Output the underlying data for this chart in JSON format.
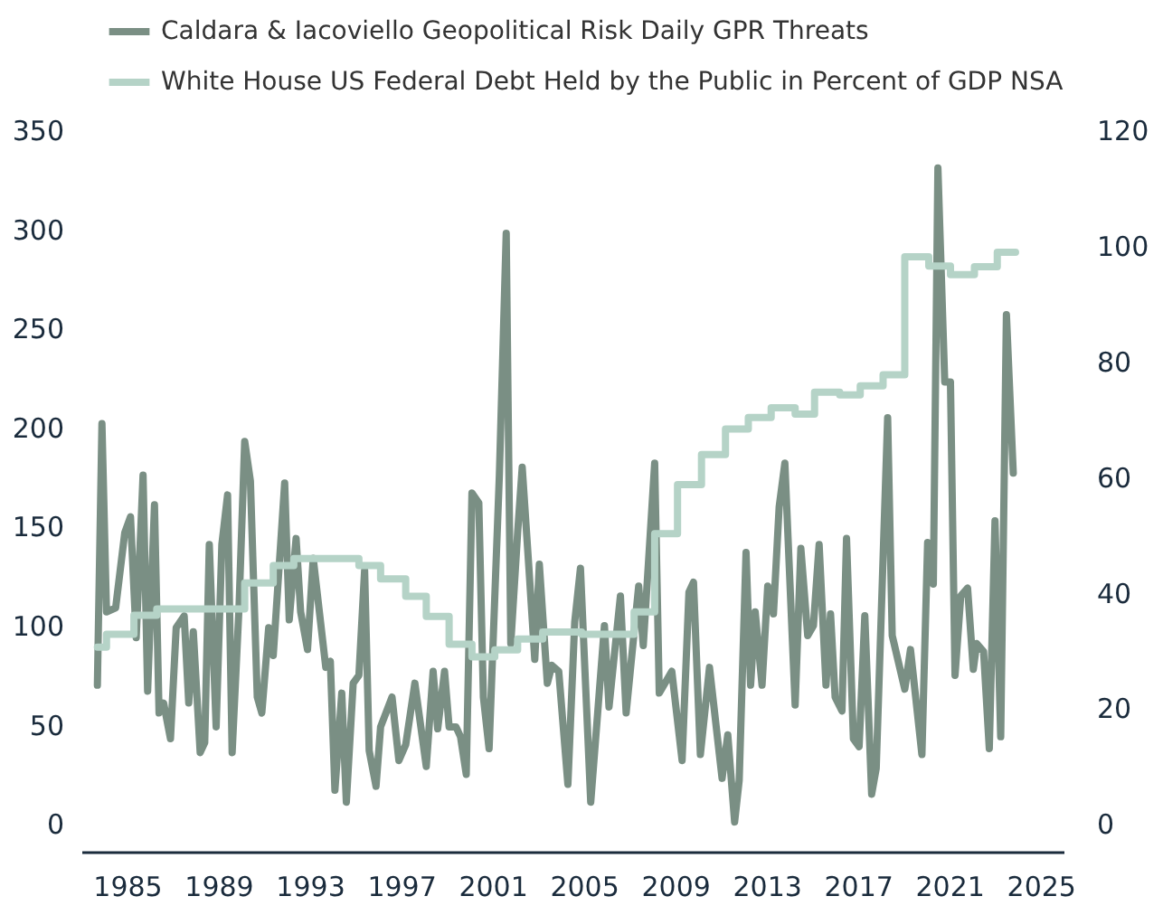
{
  "chart_data": {
    "type": "line",
    "legend": "top right",
    "grid": false,
    "xlim": [
      1983,
      2026
    ],
    "xticks": [
      1985,
      1989,
      1993,
      1997,
      2001,
      2005,
      2009,
      2013,
      2017,
      2021,
      2025
    ],
    "ylim": [
      -14,
      350
    ],
    "yticks": [
      0,
      50,
      100,
      150,
      200,
      250,
      300,
      350
    ],
    "y2lim": [
      -4.8,
      120
    ],
    "y2ticks": [
      0,
      20,
      40,
      60,
      80,
      100,
      120
    ],
    "series": [
      {
        "name": "Caldara & Iacoviello Geopolitical Risk Daily GPR Threats",
        "color": "#7a8f84",
        "x": [
          1983.7,
          1983.9,
          1984.1,
          1984.5,
          1984.9,
          1985.15,
          1985.4,
          1985.7,
          1985.9,
          1986.2,
          1986.4,
          1986.6,
          1986.9,
          1987.15,
          1987.5,
          1987.7,
          1987.9,
          1988.2,
          1988.4,
          1988.6,
          1988.9,
          1989.15,
          1989.4,
          1989.6,
          1989.9,
          1990.15,
          1990.4,
          1990.7,
          1990.9,
          1991.2,
          1991.4,
          1991.9,
          1992.1,
          1992.4,
          1992.6,
          1992.9,
          1993.15,
          1993.4,
          1993.7,
          1993.9,
          1994.1,
          1994.4,
          1994.6,
          1994.9,
          1995.15,
          1995.4,
          1995.6,
          1995.9,
          1996.1,
          1996.6,
          1996.9,
          1997.2,
          1997.6,
          1998.1,
          1998.4,
          1998.6,
          1998.9,
          1999.1,
          1999.4,
          1999.6,
          1999.85,
          2000.1,
          2000.4,
          2000.6,
          2000.85,
          2001.3,
          2001.6,
          2001.8,
          2002.1,
          2002.3,
          2002.6,
          2002.85,
          2003.05,
          2003.4,
          2003.6,
          2003.9,
          2004.3,
          2004.6,
          2004.85,
          2005.3,
          2005.9,
          2006.1,
          2006.6,
          2006.85,
          2007.4,
          2007.6,
          2008.1,
          2008.3,
          2008.85,
          2009.3,
          2009.6,
          2009.8,
          2010.1,
          2010.5,
          2011.05,
          2011.3,
          2011.6,
          2011.8,
          2012.1,
          2012.3,
          2012.5,
          2012.8,
          2013.05,
          2013.3,
          2013.55,
          2013.8,
          2014.25,
          2014.5,
          2014.8,
          2015.05,
          2015.3,
          2015.6,
          2015.8,
          2016.0,
          2016.3,
          2016.5,
          2016.8,
          2017.05,
          2017.3,
          2017.6,
          2017.8,
          2018.3,
          2018.5,
          2019.05,
          2019.3,
          2019.8,
          2020.05,
          2020.3,
          2020.5,
          2020.8,
          2021.05,
          2021.25,
          2021.5,
          2021.8,
          2022.05,
          2022.2,
          2022.5,
          2022.75,
          2023.0,
          2023.25,
          2023.5,
          2023.8
        ],
        "values": [
          70,
          202,
          107,
          109,
          147,
          155,
          94,
          176,
          67,
          161,
          56,
          61,
          43,
          99,
          105,
          61,
          97,
          36,
          41,
          141,
          49,
          141,
          166,
          36,
          109,
          193,
          173,
          64,
          56,
          99,
          85,
          172,
          103,
          144,
          107,
          88,
          134,
          109,
          79,
          82,
          17,
          66,
          11,
          71,
          75,
          128,
          37,
          19,
          49,
          64,
          32,
          40,
          71,
          29,
          77,
          48,
          77,
          49,
          49,
          44,
          25,
          167,
          162,
          64,
          38,
          176,
          298,
          91,
          147,
          180,
          128,
          83,
          131,
          71,
          80,
          77,
          20,
          102,
          129,
          11,
          100,
          59,
          115,
          56,
          120,
          90,
          182,
          66,
          77,
          32,
          117,
          122,
          35,
          79,
          23,
          45,
          1,
          22,
          137,
          70,
          107,
          70,
          120,
          106,
          160,
          182,
          60,
          139,
          95,
          100,
          141,
          70,
          106,
          64,
          57,
          144,
          43,
          39,
          105,
          15,
          28,
          205,
          95,
          68,
          88,
          35,
          142,
          121,
          331,
          223,
          223,
          75,
          115,
          119,
          78,
          91,
          87,
          38,
          153,
          44,
          257,
          177
        ]
      },
      {
        "name": "White House US Federal Debt Held by the Public in Percent of GDP NSA",
        "color": "#b5d3c7",
        "type": "step",
        "axis": "y2",
        "x": [
          1983.7,
          1984.1,
          1985.3,
          1986.3,
          1990.15,
          1991.4,
          1992.3,
          1995.15,
          1996.1,
          1997.2,
          1998.1,
          1999.1,
          2000.1,
          2001.1,
          2002.1,
          2003.2,
          2004.9,
          2007.2,
          2008.1,
          2009.1,
          2010.15,
          2011.2,
          2012.2,
          2013.2,
          2014.25,
          2015.1,
          2016.2,
          2017.1,
          2018.1,
          2019.05,
          2020.1,
          2021.05,
          2022.1,
          2023.1,
          2023.9
        ],
        "values": [
          30.6,
          32.8,
          36.1,
          37.2,
          41.7,
          44.7,
          45.9,
          44.7,
          42.4,
          39.4,
          35.9,
          31.1,
          28.9,
          30.1,
          32.0,
          33.2,
          32.8,
          36.7,
          50.2,
          58.7,
          63.9,
          68.3,
          70.3,
          72.0,
          70.9,
          74.7,
          74.2,
          75.8,
          77.7,
          98.1,
          96.5,
          95.0,
          96.4,
          98.9,
          98.9
        ]
      }
    ]
  }
}
